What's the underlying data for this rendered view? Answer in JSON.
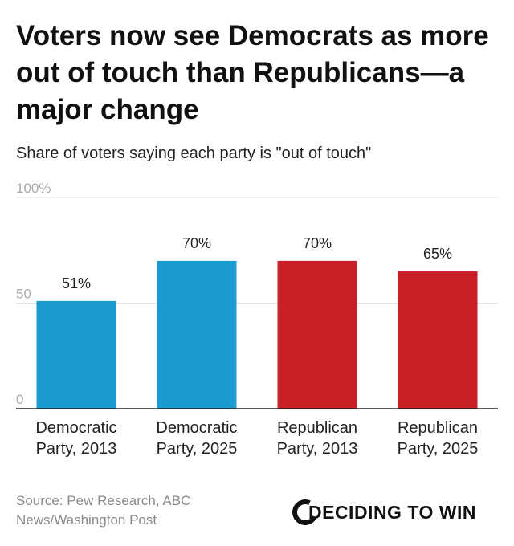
{
  "title": "Voters now see Democrats as more out of touch than Republicans—a major change",
  "subtitle": "Share of voters saying each party is \"out of touch\"",
  "source": "Source: Pew Research, ABC News/Washington Post",
  "logo": {
    "text": "DECIDING TO WIN",
    "icon": "c-ring-icon"
  },
  "colors": {
    "democratic": "#1c9bd0",
    "republican": "#c91f26",
    "grid": "#e3e3e3",
    "axis": "#222222"
  },
  "chart_data": {
    "type": "bar",
    "title": "Voters now see Democrats as more out of touch than Republicans—a major change",
    "subtitle": "Share of voters saying each party is \"out of touch\"",
    "categories": [
      [
        "Democratic",
        "Party, 2013"
      ],
      [
        "Democratic",
        "Party, 2025"
      ],
      [
        "Republican",
        "Party, 2013"
      ],
      [
        "Republican",
        "Party, 2025"
      ]
    ],
    "values": [
      51,
      70,
      70,
      65
    ],
    "value_labels": [
      "51%",
      "70%",
      "70%",
      "65%"
    ],
    "bar_colors": [
      "#1c9bd0",
      "#1c9bd0",
      "#c91f26",
      "#c91f26"
    ],
    "ylim": [
      0,
      100
    ],
    "yticks": [
      0,
      50,
      100
    ],
    "ytick_labels": [
      "0",
      "50",
      "100%"
    ],
    "grid": true,
    "xlabel": "",
    "ylabel": ""
  }
}
